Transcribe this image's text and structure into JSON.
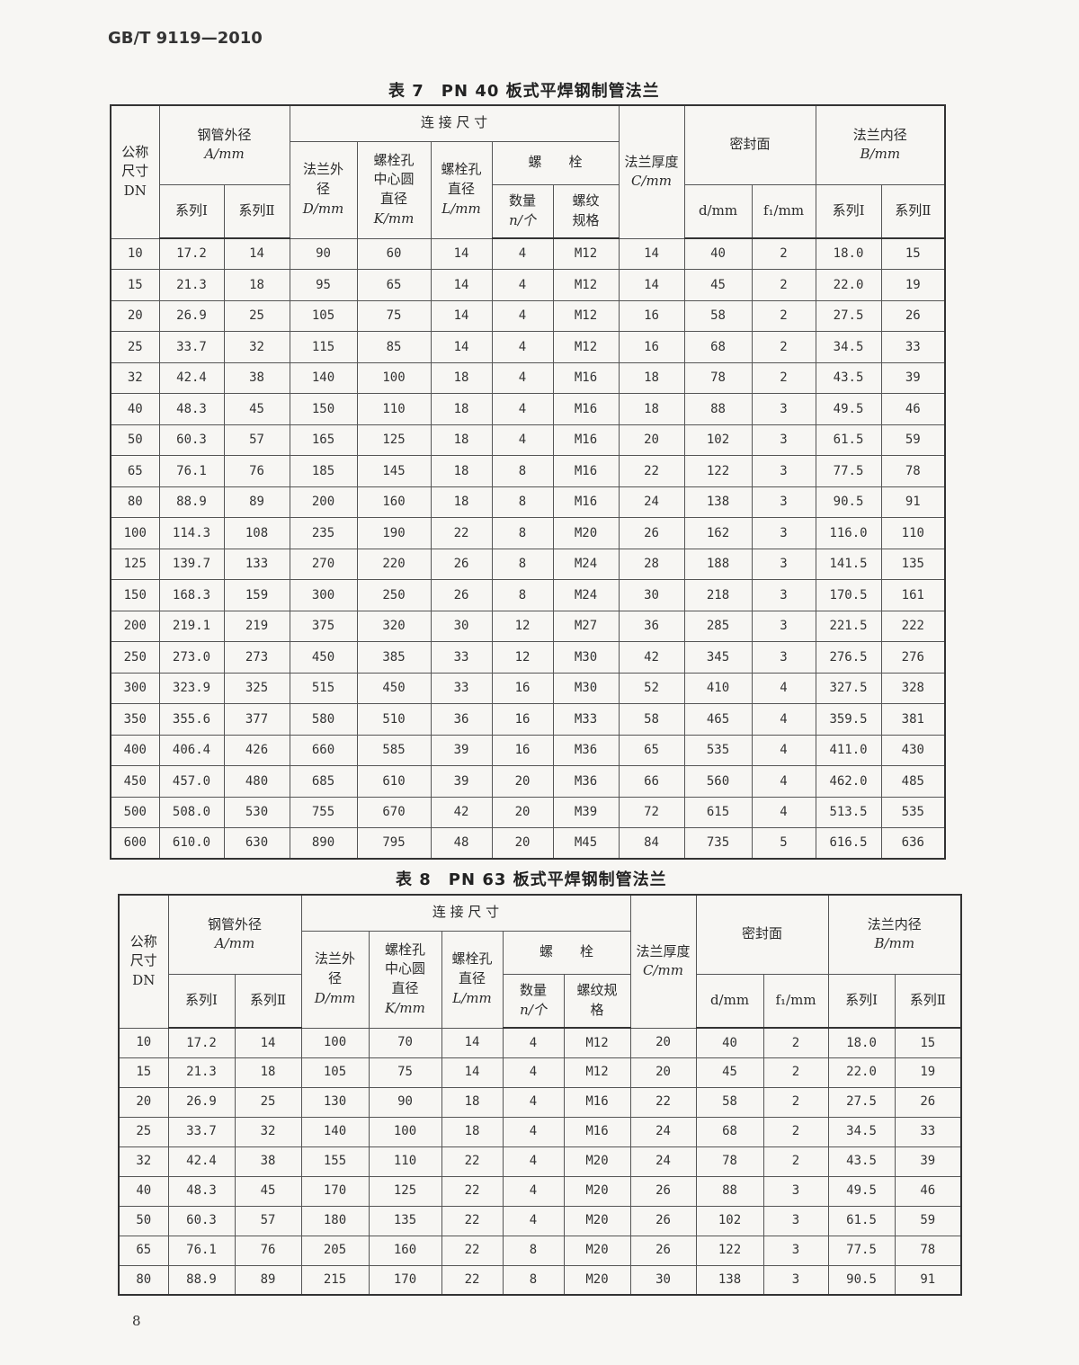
{
  "standard_code": "GB/T 9119—2010",
  "page_number": "8",
  "header": {
    "dn": "公称尺寸DN",
    "pipe_od": "钢管外径",
    "pipe_od_unit": "A/mm",
    "connection": "连 接 尺 寸",
    "flange_od": "法兰外径",
    "flange_od_unit": "D/mm",
    "bolt_circle": "螺栓孔中心圆直径",
    "bolt_circle_unit": "K/mm",
    "bolt_hole": "螺栓孔直径",
    "bolt_hole_unit": "L/mm",
    "bolt": "螺　　栓",
    "bolt_qty": "数量",
    "bolt_qty_unit": "n/个",
    "bolt_thread": "螺纹规格",
    "thickness": "法兰厚度",
    "thickness_unit": "C/mm",
    "sealing": "密封面",
    "seal_d": "d/mm",
    "seal_f1": "f₁/mm",
    "bore": "法兰内径",
    "bore_unit": "B/mm",
    "series1": "系列Ⅰ",
    "series2": "系列Ⅱ"
  },
  "tables": [
    {
      "caption": "表 7　PN 40 板式平焊钢制管法兰",
      "rows": [
        [
          "10",
          "17.2",
          "14",
          "90",
          "60",
          "14",
          "4",
          "M12",
          "14",
          "40",
          "2",
          "18.0",
          "15"
        ],
        [
          "15",
          "21.3",
          "18",
          "95",
          "65",
          "14",
          "4",
          "M12",
          "14",
          "45",
          "2",
          "22.0",
          "19"
        ],
        [
          "20",
          "26.9",
          "25",
          "105",
          "75",
          "14",
          "4",
          "M12",
          "16",
          "58",
          "2",
          "27.5",
          "26"
        ],
        [
          "25",
          "33.7",
          "32",
          "115",
          "85",
          "14",
          "4",
          "M12",
          "16",
          "68",
          "2",
          "34.5",
          "33"
        ],
        [
          "32",
          "42.4",
          "38",
          "140",
          "100",
          "18",
          "4",
          "M16",
          "18",
          "78",
          "2",
          "43.5",
          "39"
        ],
        [
          "40",
          "48.3",
          "45",
          "150",
          "110",
          "18",
          "4",
          "M16",
          "18",
          "88",
          "3",
          "49.5",
          "46"
        ],
        [
          "50",
          "60.3",
          "57",
          "165",
          "125",
          "18",
          "4",
          "M16",
          "20",
          "102",
          "3",
          "61.5",
          "59"
        ],
        [
          "65",
          "76.1",
          "76",
          "185",
          "145",
          "18",
          "8",
          "M16",
          "22",
          "122",
          "3",
          "77.5",
          "78"
        ],
        [
          "80",
          "88.9",
          "89",
          "200",
          "160",
          "18",
          "8",
          "M16",
          "24",
          "138",
          "3",
          "90.5",
          "91"
        ],
        [
          "100",
          "114.3",
          "108",
          "235",
          "190",
          "22",
          "8",
          "M20",
          "26",
          "162",
          "3",
          "116.0",
          "110"
        ],
        [
          "125",
          "139.7",
          "133",
          "270",
          "220",
          "26",
          "8",
          "M24",
          "28",
          "188",
          "3",
          "141.5",
          "135"
        ],
        [
          "150",
          "168.3",
          "159",
          "300",
          "250",
          "26",
          "8",
          "M24",
          "30",
          "218",
          "3",
          "170.5",
          "161"
        ],
        [
          "200",
          "219.1",
          "219",
          "375",
          "320",
          "30",
          "12",
          "M27",
          "36",
          "285",
          "3",
          "221.5",
          "222"
        ],
        [
          "250",
          "273.0",
          "273",
          "450",
          "385",
          "33",
          "12",
          "M30",
          "42",
          "345",
          "3",
          "276.5",
          "276"
        ],
        [
          "300",
          "323.9",
          "325",
          "515",
          "450",
          "33",
          "16",
          "M30",
          "52",
          "410",
          "4",
          "327.5",
          "328"
        ],
        [
          "350",
          "355.6",
          "377",
          "580",
          "510",
          "36",
          "16",
          "M33",
          "58",
          "465",
          "4",
          "359.5",
          "381"
        ],
        [
          "400",
          "406.4",
          "426",
          "660",
          "585",
          "39",
          "16",
          "M36",
          "65",
          "535",
          "4",
          "411.0",
          "430"
        ],
        [
          "450",
          "457.0",
          "480",
          "685",
          "610",
          "39",
          "20",
          "M36",
          "66",
          "560",
          "4",
          "462.0",
          "485"
        ],
        [
          "500",
          "508.0",
          "530",
          "755",
          "670",
          "42",
          "20",
          "M39",
          "72",
          "615",
          "4",
          "513.5",
          "535"
        ],
        [
          "600",
          "610.0",
          "630",
          "890",
          "795",
          "48",
          "20",
          "M45",
          "84",
          "735",
          "5",
          "616.5",
          "636"
        ]
      ]
    },
    {
      "caption": "表 8　PN 63 板式平焊钢制管法兰",
      "rows": [
        [
          "10",
          "17.2",
          "14",
          "100",
          "70",
          "14",
          "4",
          "M12",
          "20",
          "40",
          "2",
          "18.0",
          "15"
        ],
        [
          "15",
          "21.3",
          "18",
          "105",
          "75",
          "14",
          "4",
          "M12",
          "20",
          "45",
          "2",
          "22.0",
          "19"
        ],
        [
          "20",
          "26.9",
          "25",
          "130",
          "90",
          "18",
          "4",
          "M16",
          "22",
          "58",
          "2",
          "27.5",
          "26"
        ],
        [
          "25",
          "33.7",
          "32",
          "140",
          "100",
          "18",
          "4",
          "M16",
          "24",
          "68",
          "2",
          "34.5",
          "33"
        ],
        [
          "32",
          "42.4",
          "38",
          "155",
          "110",
          "22",
          "4",
          "M20",
          "24",
          "78",
          "2",
          "43.5",
          "39"
        ],
        [
          "40",
          "48.3",
          "45",
          "170",
          "125",
          "22",
          "4",
          "M20",
          "26",
          "88",
          "3",
          "49.5",
          "46"
        ],
        [
          "50",
          "60.3",
          "57",
          "180",
          "135",
          "22",
          "4",
          "M20",
          "26",
          "102",
          "3",
          "61.5",
          "59"
        ],
        [
          "65",
          "76.1",
          "76",
          "205",
          "160",
          "22",
          "8",
          "M20",
          "26",
          "122",
          "3",
          "77.5",
          "78"
        ],
        [
          "80",
          "88.9",
          "89",
          "215",
          "170",
          "22",
          "8",
          "M20",
          "30",
          "138",
          "3",
          "90.5",
          "91"
        ]
      ]
    }
  ]
}
